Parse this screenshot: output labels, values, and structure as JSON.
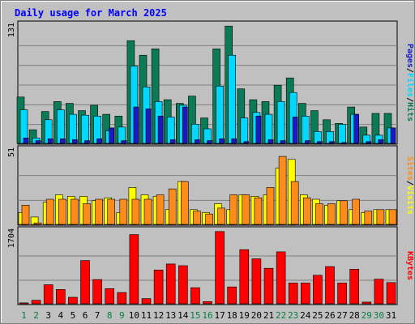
{
  "chart_data": {
    "type": "bar",
    "title": "Daily usage for March 2025",
    "categories": [
      "1",
      "2",
      "3",
      "4",
      "5",
      "6",
      "7",
      "8",
      "9",
      "10",
      "11",
      "12",
      "13",
      "14",
      "15",
      "16",
      "17",
      "18",
      "19",
      "20",
      "21",
      "22",
      "23",
      "24",
      "25",
      "26",
      "27",
      "28",
      "29",
      "30",
      "31"
    ],
    "weekend_days": [
      "1",
      "2",
      "8",
      "9",
      "15",
      "16",
      "22",
      "23",
      "29",
      "30"
    ],
    "panels": [
      {
        "id": "hits-files-pages",
        "ymax_label": "131",
        "ymax": 131,
        "grid": true,
        "side_labels": [
          "Pages",
          "Files",
          "Hits"
        ],
        "series": [
          {
            "name": "Hits",
            "color": "#0b7a57",
            "values": [
              51,
              15,
              35,
              46,
              44,
              36,
              42,
              32,
              30,
              113,
              97,
              104,
              48,
              44,
              52,
              28,
              104,
              129,
              60,
              48,
              46,
              64,
              72,
              44,
              36,
              26,
              22,
              40,
              18,
              33,
              33
            ]
          },
          {
            "name": "Files",
            "color": "#00d8ff",
            "values": [
              37,
              6,
              26,
              37,
              32,
              31,
              30,
              14,
              18,
              85,
              62,
              46,
              29,
              42,
              21,
              16,
              63,
              97,
              28,
              34,
              32,
              46,
              56,
              30,
              13,
              13,
              21,
              32,
              9,
              9,
              17
            ]
          },
          {
            "name": "Pages",
            "color": "#1919c8",
            "values": [
              6,
              3,
              5,
              5,
              4,
              3,
              5,
              17,
              3,
              40,
              38,
              30,
              4,
              40,
              4,
              3,
              5,
              5,
              2,
              30,
              4,
              3,
              29,
              3,
              2,
              2,
              1,
              32,
              2,
              4,
              17
            ]
          }
        ]
      },
      {
        "id": "visits-sites",
        "ymax_label": "51",
        "ymax": 51,
        "grid": true,
        "side_labels": [
          "Sites",
          "Visits"
        ],
        "series": [
          {
            "name": "Visits",
            "color": "#ffff00",
            "values": [
              8,
              5,
              15,
              20,
              19,
              19,
              16,
              18,
              8,
              25,
              20,
              19,
              10,
              29,
              10,
              8,
              14,
              10,
              20,
              19,
              20,
              38,
              44,
              20,
              17,
              13,
              16,
              10,
              8,
              10,
              10
            ]
          },
          {
            "name": "Sites",
            "color": "#ff8c1a",
            "values": [
              13,
              1,
              17,
              17,
              17,
              14,
              17,
              17,
              17,
              17,
              17,
              20,
              24,
              29,
              9,
              7,
              11,
              20,
              20,
              18,
              25,
              46,
              29,
              18,
              14,
              14,
              16,
              17,
              9,
              10,
              10
            ]
          }
        ]
      },
      {
        "id": "kbytes",
        "ymax_label": "1704",
        "ymax": 1704,
        "grid": true,
        "side_labels": [
          "KBytes"
        ],
        "series": [
          {
            "name": "KBytes",
            "color": "#ff0000",
            "values": [
              20,
              80,
              440,
              330,
              150,
              1000,
              560,
              350,
              260,
              1600,
              120,
              780,
              920,
              880,
              370,
              50,
              1670,
              390,
              1250,
              1040,
              820,
              1200,
              480,
              480,
              660,
              860,
              480,
              800,
              40,
              570,
              490
            ]
          }
        ]
      }
    ]
  }
}
